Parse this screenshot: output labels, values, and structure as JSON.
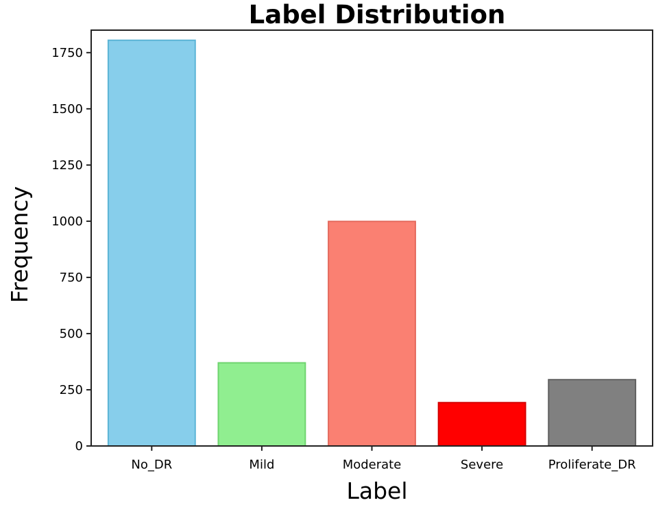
{
  "chart_data": {
    "type": "bar",
    "title": "Label Distribution",
    "xlabel": "Label",
    "ylabel": "Frequency",
    "categories": [
      "No_DR",
      "Mild",
      "Moderate",
      "Severe",
      "Proliferate_DR"
    ],
    "values": [
      1805,
      370,
      999,
      193,
      295
    ],
    "colors": [
      "#87ceeb",
      "#90ee90",
      "#fa8072",
      "#ff0000",
      "#808080"
    ],
    "edge_colors": [
      "#5bb4d6",
      "#6fd46f",
      "#e56a5d",
      "#d40000",
      "#606060"
    ],
    "ylim": [
      0,
      1850
    ],
    "yticks": [
      0,
      250,
      500,
      750,
      1000,
      1250,
      1500,
      1750
    ],
    "grid": false,
    "legend": "none"
  }
}
